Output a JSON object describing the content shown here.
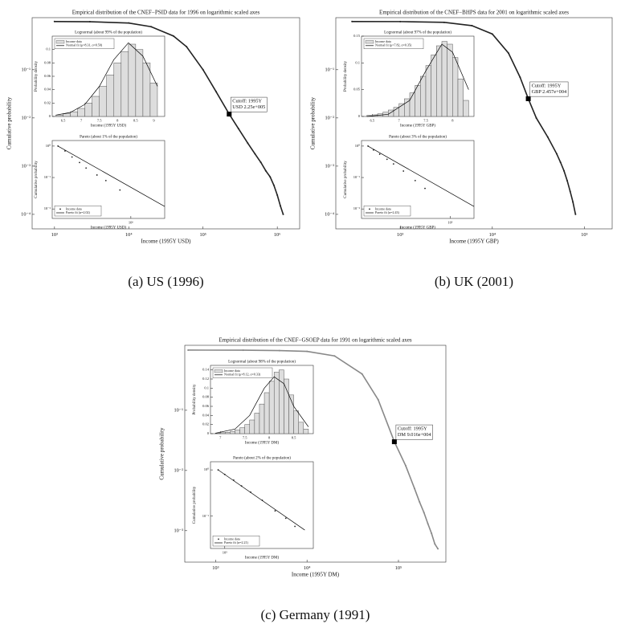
{
  "chart_data": [
    {
      "type": "line",
      "title": "Empirical distribution of the CNEF−PSID data for 1996 on logarithmic scaled axes",
      "xlabel": "Income (1995Y USD)",
      "ylabel": "Cumulative probability",
      "caption": "(a) US (1996)",
      "color": "#222222",
      "xlog": true,
      "ylog": true,
      "xlim": [
        500,
        2000000
      ],
      "xticks": [
        {
          "value": 1000,
          "label": "10³"
        },
        {
          "value": 10000,
          "label": "10⁴"
        },
        {
          "value": 100000,
          "label": "10⁵"
        },
        {
          "value": 1000000,
          "label": "10⁶"
        }
      ],
      "ylim": [
        5e-05,
        1.2
      ],
      "yticks": [
        {
          "value": 0.0001,
          "label": "10⁻⁴"
        },
        {
          "value": 0.001,
          "label": "10⁻³"
        },
        {
          "value": 0.01,
          "label": "10⁻²"
        },
        {
          "value": 0.1,
          "label": "10⁻¹"
        }
      ],
      "x": [
        1000,
        3000,
        10000,
        20000,
        40000,
        60000,
        100000,
        150000,
        225000,
        300000,
        400000,
        500000,
        600000,
        700000,
        800000,
        900000,
        1000000,
        1100000,
        1200000
      ],
      "values": [
        0.999,
        0.99,
        0.93,
        0.78,
        0.5,
        0.3,
        0.1,
        0.035,
        0.012,
        0.006,
        0.003,
        0.0018,
        0.0012,
        0.0008,
        0.0006,
        0.0004,
        0.00025,
        0.00015,
        0.0001
      ],
      "annotation": {
        "text": [
          "Cutoff: 1995Y",
          "USD 2.25e+005"
        ],
        "x": 225000,
        "y": 0.012
      }
    },
    {
      "type": "histogram",
      "title": "Lognormal (about 99% of the population)",
      "xlabel": "Income (1995Y USD)",
      "ylabel": "Probability density",
      "legend": "upper left",
      "xlim": [
        6.2,
        9.3
      ],
      "xticks": [
        6.5,
        7,
        7.5,
        8,
        8.5,
        9
      ],
      "ylim": [
        0,
        0.12
      ],
      "yticks": [
        0,
        0.02,
        0.04,
        0.06,
        0.08,
        0.1
      ],
      "name": "Income data",
      "bins": [
        6.3,
        6.5,
        6.7,
        6.9,
        7.1,
        7.3,
        7.5,
        7.7,
        7.9,
        8.1,
        8.3,
        8.5,
        8.7,
        8.9,
        9.1
      ],
      "values": [
        0.002,
        0.004,
        0.007,
        0.012,
        0.02,
        0.03,
        0.045,
        0.062,
        0.08,
        0.097,
        0.108,
        0.1,
        0.08,
        0.05
      ],
      "fit": {
        "name": "Normal fit (μ=8.31, σ=0.50)",
        "x": [
          6.3,
          6.7,
          7.1,
          7.5,
          7.9,
          8.3,
          8.7,
          9.1
        ],
        "values": [
          0.002,
          0.006,
          0.018,
          0.045,
          0.085,
          0.11,
          0.09,
          0.045
        ]
      }
    },
    {
      "type": "scatter",
      "title": "Pareto (about 1% of the population)",
      "xlabel": "Income (1995Y USD)",
      "ylabel": "Cumulative probability",
      "legend": "lower left",
      "xlog": true,
      "ylog": true,
      "xlim": [
        200000,
        2000000
      ],
      "xticks": [
        {
          "value": 1000000,
          "label": "10⁶"
        }
      ],
      "ylim": [
        0.005,
        1.5
      ],
      "yticks": [
        {
          "value": 0.01,
          "label": "10⁻²"
        },
        {
          "value": 0.1,
          "label": "10⁻¹"
        },
        {
          "value": 1,
          "label": "10⁰"
        }
      ],
      "name": "Income data",
      "x": [
        225000,
        260000,
        300000,
        350000,
        400000,
        500000,
        600000,
        800000
      ],
      "values": [
        1,
        0.7,
        0.45,
        0.3,
        0.2,
        0.12,
        0.08,
        0.04
      ],
      "fit": {
        "name": "Pareto fit (α=2.02)",
        "x": [
          225000,
          2000000
        ],
        "values": [
          1,
          0.012
        ]
      }
    },
    {
      "type": "line",
      "title": "Empirical distribution of the CNEF−BHPS data for 2001 on logarithmic scaled axes",
      "xlabel": "Income (1995Y GBP)",
      "ylabel": "Cumulative probability",
      "caption": "(b) UK (2001)",
      "color": "#222222",
      "xlog": true,
      "ylog": true,
      "xlim": [
        200,
        200000
      ],
      "xticks": [
        {
          "value": 1000,
          "label": "10³"
        },
        {
          "value": 10000,
          "label": "10⁴"
        },
        {
          "value": 100000,
          "label": "10⁵"
        }
      ],
      "ylim": [
        5e-05,
        1.2
      ],
      "yticks": [
        {
          "value": 0.0001,
          "label": "10⁻⁴"
        },
        {
          "value": 0.001,
          "label": "10⁻³"
        },
        {
          "value": 0.01,
          "label": "10⁻²"
        },
        {
          "value": 0.1,
          "label": "10⁻¹"
        }
      ],
      "x": [
        300,
        1000,
        3000,
        6000,
        10000,
        15000,
        20000,
        24570,
        30000,
        40000,
        50000,
        55000,
        60000,
        65000,
        70000,
        75000,
        80000
      ],
      "values": [
        0.999,
        0.995,
        0.96,
        0.82,
        0.55,
        0.22,
        0.07,
        0.025,
        0.01,
        0.004,
        0.0018,
        0.0012,
        0.0008,
        0.0005,
        0.0003,
        0.00018,
        0.0001
      ],
      "annotation": {
        "text": [
          "Cutoff: 1995Y",
          "GBP 2.457e+004"
        ],
        "x": 24570,
        "y": 0.025
      }
    },
    {
      "type": "histogram",
      "title": "Lognormal (about 97% of the population)",
      "xlabel": "Income (1995Y GBP)",
      "ylabel": "Probability density",
      "legend": "upper left",
      "xlim": [
        6.3,
        8.4
      ],
      "xticks": [
        6.5,
        7,
        7.5,
        8
      ],
      "ylim": [
        0,
        0.15
      ],
      "yticks": [
        0,
        0.05,
        0.1,
        0.15
      ],
      "name": "Income data",
      "bins": [
        6.4,
        6.5,
        6.6,
        6.7,
        6.8,
        6.9,
        7,
        7.1,
        7.2,
        7.3,
        7.4,
        7.5,
        7.6,
        7.7,
        7.8,
        7.9,
        8,
        8.1,
        8.2,
        8.3
      ],
      "values": [
        0.002,
        0.003,
        0.005,
        0.008,
        0.012,
        0.017,
        0.024,
        0.033,
        0.044,
        0.058,
        0.075,
        0.095,
        0.115,
        0.132,
        0.14,
        0.135,
        0.11,
        0.07,
        0.03
      ],
      "fit": {
        "name": "Normal fit (μ=7.82, σ=0.35)",
        "x": [
          6.4,
          6.8,
          7.2,
          7.5,
          7.8,
          8,
          8.3
        ],
        "values": [
          0,
          0.004,
          0.03,
          0.085,
          0.135,
          0.12,
          0.05
        ]
      }
    },
    {
      "type": "scatter",
      "title": "Pareto (about 3% of the population)",
      "xlabel": "Income (1995Y GBP)",
      "ylabel": "Cumulative probability",
      "legend": "lower left",
      "xlog": true,
      "ylog": true,
      "xlim": [
        22000,
        150000
      ],
      "xticks": [
        {
          "value": 100000,
          "label": "10⁵"
        }
      ],
      "ylim": [
        0.005,
        1.5
      ],
      "yticks": [
        {
          "value": 0.01,
          "label": "10⁻²"
        },
        {
          "value": 0.1,
          "label": "10⁻¹"
        },
        {
          "value": 1,
          "label": "10⁰"
        }
      ],
      "name": "Income data",
      "x": [
        24570,
        27000,
        30000,
        34000,
        38000,
        45000,
        55000,
        65000
      ],
      "values": [
        1,
        0.75,
        0.55,
        0.38,
        0.27,
        0.16,
        0.08,
        0.045
      ],
      "fit": {
        "name": "Pareto fit (α=2.43)",
        "x": [
          24570,
          150000
        ],
        "values": [
          1,
          0.012
        ]
      }
    },
    {
      "type": "line",
      "title": "Empirical distribution of the CNEF−GSOEP data for 1991 on logarithmic scaled axes",
      "xlabel": "Income (1995Y DM)",
      "ylabel": "Cumulative probability",
      "caption": "(c) Germany (1991)",
      "color": "#888888",
      "xlog": true,
      "ylog": true,
      "xlim": [
        460,
        330000
      ],
      "xticks": [
        {
          "value": 1000,
          "label": "10³"
        },
        {
          "value": 10000,
          "label": "10⁴"
        },
        {
          "value": 100000,
          "label": "10⁵"
        }
      ],
      "ylim": [
        0.0003,
        1.2
      ],
      "yticks": [
        {
          "value": 0.001,
          "label": "10⁻³"
        },
        {
          "value": 0.01,
          "label": "10⁻²"
        },
        {
          "value": 0.1,
          "label": "10⁻¹"
        }
      ],
      "x": [
        500,
        2000,
        5000,
        10000,
        20000,
        40000,
        60000,
        90160,
        120000,
        150000,
        170000,
        190000,
        210000,
        230000,
        250000,
        270000
      ],
      "values": [
        0.999,
        0.995,
        0.98,
        0.95,
        0.8,
        0.4,
        0.15,
        0.03,
        0.012,
        0.005,
        0.003,
        0.002,
        0.0013,
        0.0009,
        0.0006,
        0.0005
      ],
      "annotation": {
        "text": [
          "Cutoff: 1995Y",
          "DM 9.016e+004"
        ],
        "x": 90160,
        "y": 0.03
      }
    },
    {
      "type": "histogram",
      "title": "Lognormal (about 98% of the population)",
      "xlabel": "Income (1995Y DM)",
      "ylabel": "Probability density",
      "legend": "upper left",
      "xlim": [
        6.8,
        8.9
      ],
      "xticks": [
        7,
        7.5,
        8,
        8.5
      ],
      "ylim": [
        0,
        0.15
      ],
      "yticks": [
        0,
        0.02,
        0.04,
        0.06,
        0.08,
        0.1,
        0.12,
        0.14
      ],
      "name": "Income data",
      "bins": [
        6.9,
        7,
        7.1,
        7.2,
        7.3,
        7.4,
        7.5,
        7.6,
        7.7,
        7.8,
        7.9,
        8,
        8.1,
        8.2,
        8.3,
        8.4,
        8.5,
        8.6,
        8.7,
        8.8
      ],
      "values": [
        0.001,
        0.002,
        0.003,
        0.005,
        0.008,
        0.013,
        0.02,
        0.03,
        0.045,
        0.065,
        0.09,
        0.115,
        0.135,
        0.14,
        0.12,
        0.085,
        0.05,
        0.025,
        0.01
      ],
      "fit": {
        "name": "Normal fit (μ=8.12, σ=0.33)",
        "x": [
          6.9,
          7.3,
          7.6,
          7.9,
          8.1,
          8.3,
          8.5,
          8.8
        ],
        "values": [
          0.001,
          0.01,
          0.04,
          0.1,
          0.125,
          0.11,
          0.06,
          0.015
        ]
      }
    },
    {
      "type": "scatter",
      "title": "Pareto (about 2% of the population)",
      "xlabel": "Income (1995Y DM)",
      "ylabel": "Cumulative probability",
      "legend": "lower left",
      "xlog": true,
      "ylog": true,
      "xlim": [
        80000,
        400000
      ],
      "xticks": [
        {
          "value": 100000,
          "label": "10⁵"
        }
      ],
      "ylim": [
        0.02,
        1.5
      ],
      "yticks": [
        {
          "value": 0.1,
          "label": "10⁻¹"
        },
        {
          "value": 1,
          "label": "10⁰"
        }
      ],
      "name": "Income data",
      "x": [
        90160,
        100000,
        115000,
        130000,
        150000,
        180000,
        220000,
        260000,
        300000
      ],
      "values": [
        1,
        0.8,
        0.6,
        0.45,
        0.33,
        0.22,
        0.13,
        0.09,
        0.06
      ],
      "fit": {
        "name": "Pareto fit (α=2.21)",
        "x": [
          90160,
          350000
        ],
        "values": [
          1,
          0.05
        ]
      }
    }
  ]
}
